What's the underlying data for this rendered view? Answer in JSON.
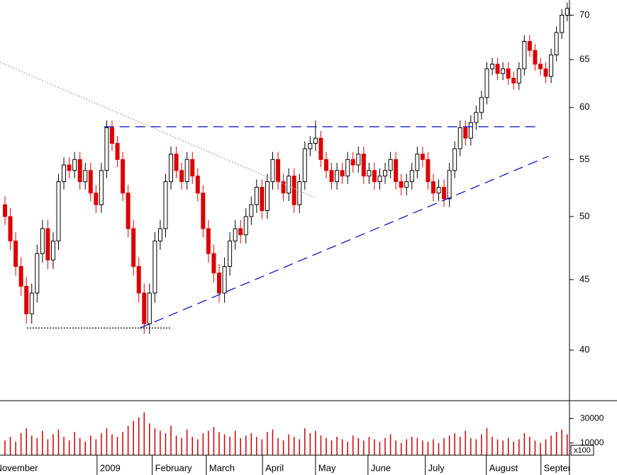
{
  "chart_data": [
    {
      "type": "candlestick",
      "log_scale": true,
      "ylim": [
        36.8,
        71.8
      ],
      "yticks": [
        40,
        45,
        50,
        55,
        60,
        65,
        70
      ],
      "up_color": "#ffffff",
      "down_color": "#dd0000",
      "xticks": [
        {
          "value": -2.3,
          "label": "November"
        },
        {
          "value": 17.2,
          "label": "2009"
        },
        {
          "value": 27.5,
          "label": "February"
        },
        {
          "value": 37.6,
          "label": "March"
        },
        {
          "value": 48.1,
          "label": "April"
        },
        {
          "value": 58.0,
          "label": "May"
        },
        {
          "value": 67.8,
          "label": "June"
        },
        {
          "value": 78.5,
          "label": "July"
        },
        {
          "value": 89.9,
          "label": "August"
        },
        {
          "value": 100.1,
          "label": "September"
        }
      ],
      "open": [
        51,
        50,
        48,
        46,
        44.5,
        42.5,
        44,
        47,
        49,
        46.5,
        48,
        53,
        54.5,
        54,
        55,
        53,
        54,
        52,
        51,
        54,
        58,
        56.5,
        55,
        52,
        49,
        46,
        44,
        41.8,
        44,
        48,
        49,
        53,
        55.5,
        54,
        53,
        55,
        53.5,
        52,
        49,
        47,
        45.5,
        44,
        46,
        48,
        49,
        48.5,
        50,
        51,
        52.5,
        50.5,
        53,
        55,
        53,
        52,
        53.5,
        51,
        53,
        56,
        56.5,
        57,
        55,
        54,
        53,
        54,
        53.5,
        55,
        54.5,
        55.5,
        53.5,
        54,
        53,
        53.5,
        54,
        55,
        53,
        52.5,
        53,
        54,
        55.5,
        55,
        53,
        52,
        52.5,
        51.5,
        54,
        56,
        58,
        57,
        58.5,
        59.5,
        61,
        64,
        64.5,
        63.5,
        64,
        63,
        62.5,
        64,
        67,
        66,
        64.5,
        64,
        63.2,
        65.5,
        68,
        70
      ],
      "high": [
        51.7,
        50.7,
        48.7,
        46.7,
        45.2,
        44.7,
        47.7,
        49.7,
        49.7,
        48.7,
        53.7,
        55.2,
        55.2,
        55.7,
        55.7,
        54.7,
        54.7,
        52.7,
        54.7,
        58.7,
        58.7,
        57.2,
        55.7,
        52.7,
        49.7,
        46.7,
        44.7,
        44.7,
        48.7,
        49.7,
        53.7,
        56.2,
        56.2,
        54.7,
        55.7,
        55.7,
        54.2,
        52.7,
        49.7,
        47.7,
        46.2,
        46.7,
        48.7,
        49.7,
        49.7,
        50.7,
        51.7,
        53.2,
        53.2,
        53.7,
        55.7,
        55.7,
        53.7,
        54.2,
        54.2,
        53.7,
        56.7,
        57.2,
        58.7,
        57.7,
        55.7,
        54.7,
        54.7,
        54.7,
        55.7,
        55.7,
        56.2,
        56.2,
        54.7,
        54.7,
        54.2,
        54.7,
        55.7,
        55.7,
        53.7,
        53.7,
        54.7,
        56.2,
        56.2,
        55.7,
        53.7,
        53.2,
        53.2,
        54.7,
        56.7,
        58.7,
        58.7,
        59.2,
        60.2,
        61.7,
        64.7,
        65.2,
        65.2,
        64.7,
        64.7,
        63.7,
        64.7,
        67.7,
        67.7,
        66.7,
        65.2,
        64.7,
        66.2,
        68.7,
        70.7,
        71.5
      ],
      "low": [
        49.3,
        47.3,
        45.3,
        43.8,
        41.8,
        41.8,
        43.3,
        46.3,
        45.8,
        45.8,
        47.3,
        52.3,
        53.3,
        53.3,
        52.3,
        52.3,
        51.3,
        50.3,
        50.3,
        53.3,
        55.8,
        54.3,
        51.3,
        48.3,
        45.3,
        43.3,
        41.1,
        41.1,
        43.3,
        47.3,
        48.3,
        52.3,
        53.3,
        52.3,
        52.3,
        52.8,
        51.3,
        48.3,
        46.3,
        44.8,
        43.3,
        43.3,
        45.3,
        47.3,
        47.8,
        47.8,
        49.3,
        50.3,
        49.8,
        49.8,
        52.3,
        52.3,
        51.3,
        51.3,
        50.3,
        50.3,
        52.3,
        55.3,
        55.8,
        54.3,
        53.3,
        52.3,
        52.3,
        52.8,
        52.8,
        53.8,
        53.8,
        52.8,
        52.8,
        52.3,
        52.3,
        52.8,
        53.3,
        52.3,
        51.8,
        51.8,
        52.3,
        53.3,
        54.3,
        52.3,
        51.3,
        51.3,
        50.8,
        50.8,
        53.3,
        55.3,
        56.3,
        56.3,
        57.8,
        58.8,
        60.3,
        63.3,
        62.8,
        62.8,
        62.3,
        61.8,
        61.8,
        63.3,
        65.3,
        63.8,
        63.3,
        62.5,
        62.5,
        64.8,
        67.3,
        69.3
      ],
      "close": [
        50,
        48,
        46,
        44.5,
        42.5,
        44,
        47,
        49,
        46.5,
        48,
        53,
        54.5,
        54,
        55,
        53,
        54,
        52,
        51,
        54,
        58,
        56.5,
        55,
        52,
        49,
        46,
        44,
        41.8,
        44,
        48,
        49,
        53,
        55.5,
        54,
        53,
        55,
        53.5,
        52,
        49,
        47,
        45.5,
        44,
        46,
        48,
        49,
        48.5,
        50,
        51,
        52.5,
        50.5,
        53,
        55,
        53,
        52,
        53.5,
        51,
        53,
        56,
        56.5,
        57,
        55,
        54,
        53,
        54,
        53.5,
        55,
        54.5,
        55.5,
        53.5,
        54,
        53,
        53.5,
        54,
        55,
        53,
        52.5,
        53,
        54,
        55.5,
        55,
        53,
        52,
        52.5,
        51.5,
        54,
        56,
        58,
        57,
        58.5,
        59.5,
        61,
        64,
        64.5,
        63.5,
        64,
        63,
        62.5,
        64,
        67,
        66,
        64.5,
        64,
        63.2,
        65.5,
        68,
        70,
        70.8
      ],
      "lines": [
        {
          "x": [
            18.5,
            99.5
          ],
          "y": [
            58.1,
            58.1
          ],
          "color": "#0000cc",
          "style": "dashed"
        },
        {
          "x": [
            25.2,
            101.5
          ],
          "y": [
            41.5,
            55.3
          ],
          "color": "#0000cc",
          "style": "dashed"
        },
        {
          "x": [
            -0.9,
            58.0
          ],
          "y": [
            64.7,
            51.6
          ],
          "color": "#aaaaaa",
          "style": "dotted"
        },
        {
          "x": [
            4.1,
            30.9
          ],
          "y": [
            41.5,
            41.5
          ],
          "color": "#000000",
          "style": "dotted"
        }
      ]
    },
    {
      "type": "bar",
      "ylim": [
        0,
        44000
      ],
      "yticks": [
        10000,
        30000
      ],
      "color": "#cc0000",
      "unit_label": "x100",
      "values": [
        12000,
        15000,
        11000,
        18000,
        22000,
        16000,
        14000,
        20000,
        13000,
        17000,
        21000,
        15000,
        12000,
        19000,
        14000,
        11000,
        16000,
        13000,
        18000,
        22000,
        17000,
        15000,
        19000,
        24000,
        28000,
        31000,
        35000,
        26000,
        22000,
        20000,
        18000,
        24000,
        16000,
        14000,
        21000,
        15000,
        13000,
        18000,
        20000,
        23000,
        19000,
        17000,
        15000,
        20000,
        14000,
        16000,
        18000,
        15000,
        13000,
        19000,
        21000,
        14000,
        12000,
        17000,
        15000,
        13000,
        22000,
        18000,
        20000,
        16000,
        14000,
        12000,
        15000,
        13000,
        11000,
        16000,
        14000,
        12000,
        15000,
        13000,
        11000,
        14000,
        17000,
        12000,
        10000,
        13000,
        15000,
        14000,
        12000,
        11000,
        13000,
        10000,
        14000,
        16000,
        18000,
        15000,
        20000,
        14000,
        13000,
        17000,
        22000,
        15000,
        13000,
        12000,
        14000,
        11000,
        13000,
        18000,
        15000,
        12000,
        10000,
        13000,
        16000,
        19000,
        21000,
        17000
      ]
    }
  ]
}
